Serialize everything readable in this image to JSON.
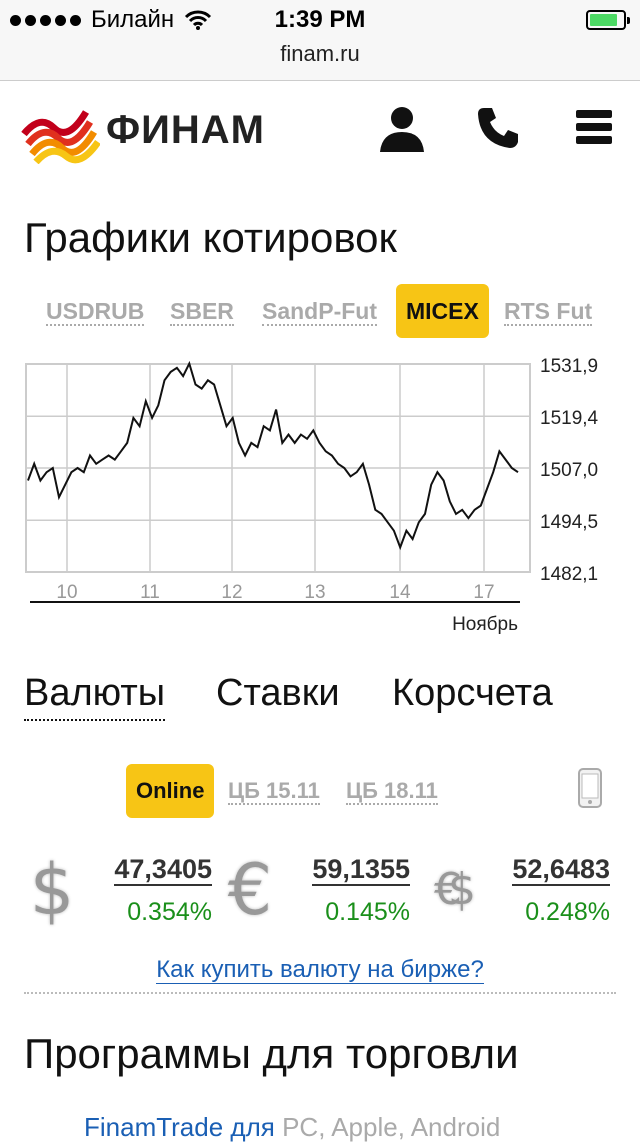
{
  "status": {
    "carrier": "Билайн",
    "time": "1:39 PM",
    "battery_level": 0.85
  },
  "url": "finam.ru",
  "header": {
    "logo_text": "ФИНАМ"
  },
  "quotes": {
    "title": "Графики котировок",
    "tabs": [
      "USDRUB",
      "SBER",
      "SandP-Fut",
      "MICEX",
      "RTS Fut"
    ],
    "active_tab": "MICEX"
  },
  "chart_data": {
    "type": "line",
    "x_ticks": [
      "10",
      "11",
      "12",
      "13",
      "14",
      "17"
    ],
    "y_ticks": [
      "1531,9",
      "1519,4",
      "1507,0",
      "1494,5",
      "1482,1"
    ],
    "ylim": [
      1482.1,
      1531.9
    ],
    "xlabel": "Ноябрь",
    "series": [
      {
        "values": [
          1504,
          1508,
          1504,
          1506,
          1507,
          1500,
          1503,
          1506,
          1507,
          1506,
          1510,
          1508,
          1509,
          1510,
          1509,
          1511,
          1513,
          1519,
          1517,
          1523,
          1519,
          1522,
          1528,
          1530,
          1531,
          1529,
          1532,
          1527,
          1526,
          1528,
          1527,
          1522,
          1517,
          1519,
          1513,
          1510,
          1513,
          1512,
          1517,
          1516,
          1521,
          1513,
          1515,
          1513,
          1515,
          1514,
          1516,
          1513,
          1511,
          1510,
          1508,
          1507,
          1505,
          1506,
          1508,
          1503,
          1497,
          1496,
          1494,
          1492,
          1488,
          1492,
          1490,
          1494,
          1496,
          1503,
          1506,
          1504,
          1499,
          1496,
          1497,
          1495,
          1497,
          1498,
          1502,
          1506,
          1511,
          1509,
          1507,
          1506
        ]
      }
    ]
  },
  "sections": {
    "tabs": [
      "Валюты",
      "Ставки",
      "Корсчета"
    ],
    "active": "Валюты"
  },
  "currency_subtabs": {
    "online": "Online",
    "cb1": "ЦБ 15.11",
    "cb2": "ЦБ 18.11"
  },
  "rates": [
    {
      "symbol": "$",
      "value": "47,3405",
      "change": "0.354%",
      "icon": "dollar-icon"
    },
    {
      "symbol": "€",
      "value": "59,1355",
      "change": "0.145%",
      "icon": "euro-icon"
    },
    {
      "symbol": "€$",
      "value": "52,6483",
      "change": "0.248%",
      "icon": "basket-icon"
    }
  ],
  "howto_link": "Как купить валюту на бирже?",
  "programs": {
    "title": "Программы для торговли",
    "link": "FinamTrade для",
    "platforms": "PC, Apple, Android"
  }
}
